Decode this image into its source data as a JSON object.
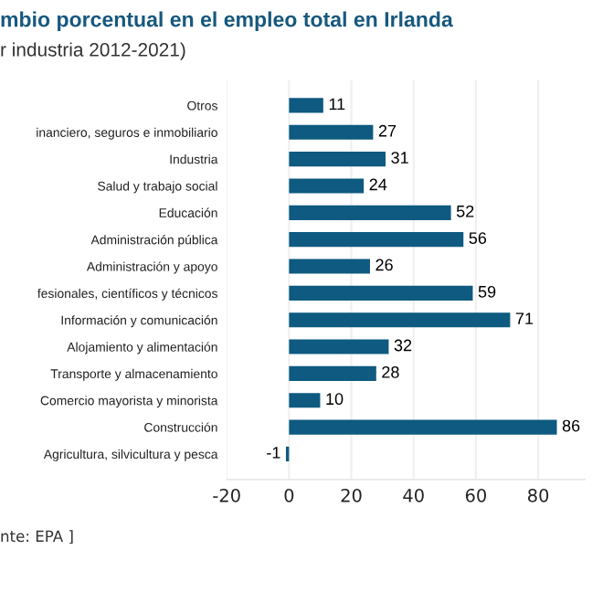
{
  "chart_data": {
    "type": "bar",
    "orientation": "horizontal",
    "title": "mbio porcentual en el empleo total en Irlanda",
    "subtitle": "r industria 2012-2021)",
    "categories": [
      "Otros",
      "inanciero, seguros e inmobiliario",
      "Industria",
      "Salud y trabajo social",
      "Educación",
      "Administración pública",
      "Administración y apoyo",
      "fesionales, científicos y técnicos",
      "Información y comunicación",
      "Alojamiento y alimentación",
      "Transporte y almacenamiento",
      "Comercio mayorista y minorista",
      "Construcción",
      "Agricultura, silvicultura y pesca"
    ],
    "values": [
      11,
      27,
      31,
      24,
      52,
      56,
      26,
      59,
      71,
      32,
      28,
      10,
      86,
      -1
    ],
    "color": "#0e5a80",
    "data_labels": true,
    "xlim": [
      -20,
      95
    ],
    "xticks": [
      -20,
      0,
      20,
      40,
      60,
      80
    ],
    "grid": "x",
    "annotations": [
      "nte: EPA ]"
    ]
  }
}
